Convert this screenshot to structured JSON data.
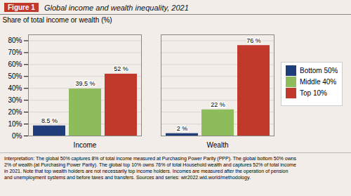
{
  "chart_data": {
    "type": "bar",
    "title": "Global income and wealth inequality, 2021",
    "figure_label": "Figure 1",
    "ylabel": "Share of total income or wealth (%)",
    "categories": [
      "Income",
      "Wealth"
    ],
    "series": [
      {
        "name": "Bottom 50%",
        "color": "#1f3d7a",
        "values": [
          8.5,
          2
        ],
        "value_labels": [
          "8.5 %",
          "2 %"
        ]
      },
      {
        "name": "Middle 40%",
        "color": "#8fbc5a",
        "values": [
          39.5,
          22
        ],
        "value_labels": [
          "39.5 %",
          "22 %"
        ]
      },
      {
        "name": "Top 10%",
        "color": "#c0392b",
        "values": [
          52,
          76
        ],
        "value_labels": [
          "52 %",
          "76 %"
        ]
      }
    ],
    "ylim": [
      0,
      85
    ],
    "yticks": [
      {
        "value": 0,
        "label": "0%"
      },
      {
        "value": 10,
        "label": "10%"
      },
      {
        "value": 20,
        "label": "20%"
      },
      {
        "value": 30,
        "label": "30%"
      },
      {
        "value": 40,
        "label": "40%"
      },
      {
        "value": 50,
        "label": "50%"
      },
      {
        "value": 60,
        "label": "60%"
      },
      {
        "value": 70,
        "label": "70%"
      },
      {
        "value": 80,
        "label": "80%"
      }
    ],
    "grid": true,
    "legend": "right",
    "data_labels": true,
    "notes": [
      "Interpretation: The global 50% captures 8% of total income measured at Purchasing Power Parity (PPP). The global bottom 50% owns",
      "2% of wealth (at Purchasing Power Parity). The global top 10% owns 76% of total Household wealth and captures 52% of total income",
      "in 2021. Note that top wealth holders are not necessarily top income holders. Incomes are measured after the operation of pension",
      "and unemployment systems and before taxes and transfers. Sources and series: wir2022.wid.world/methodology."
    ]
  }
}
